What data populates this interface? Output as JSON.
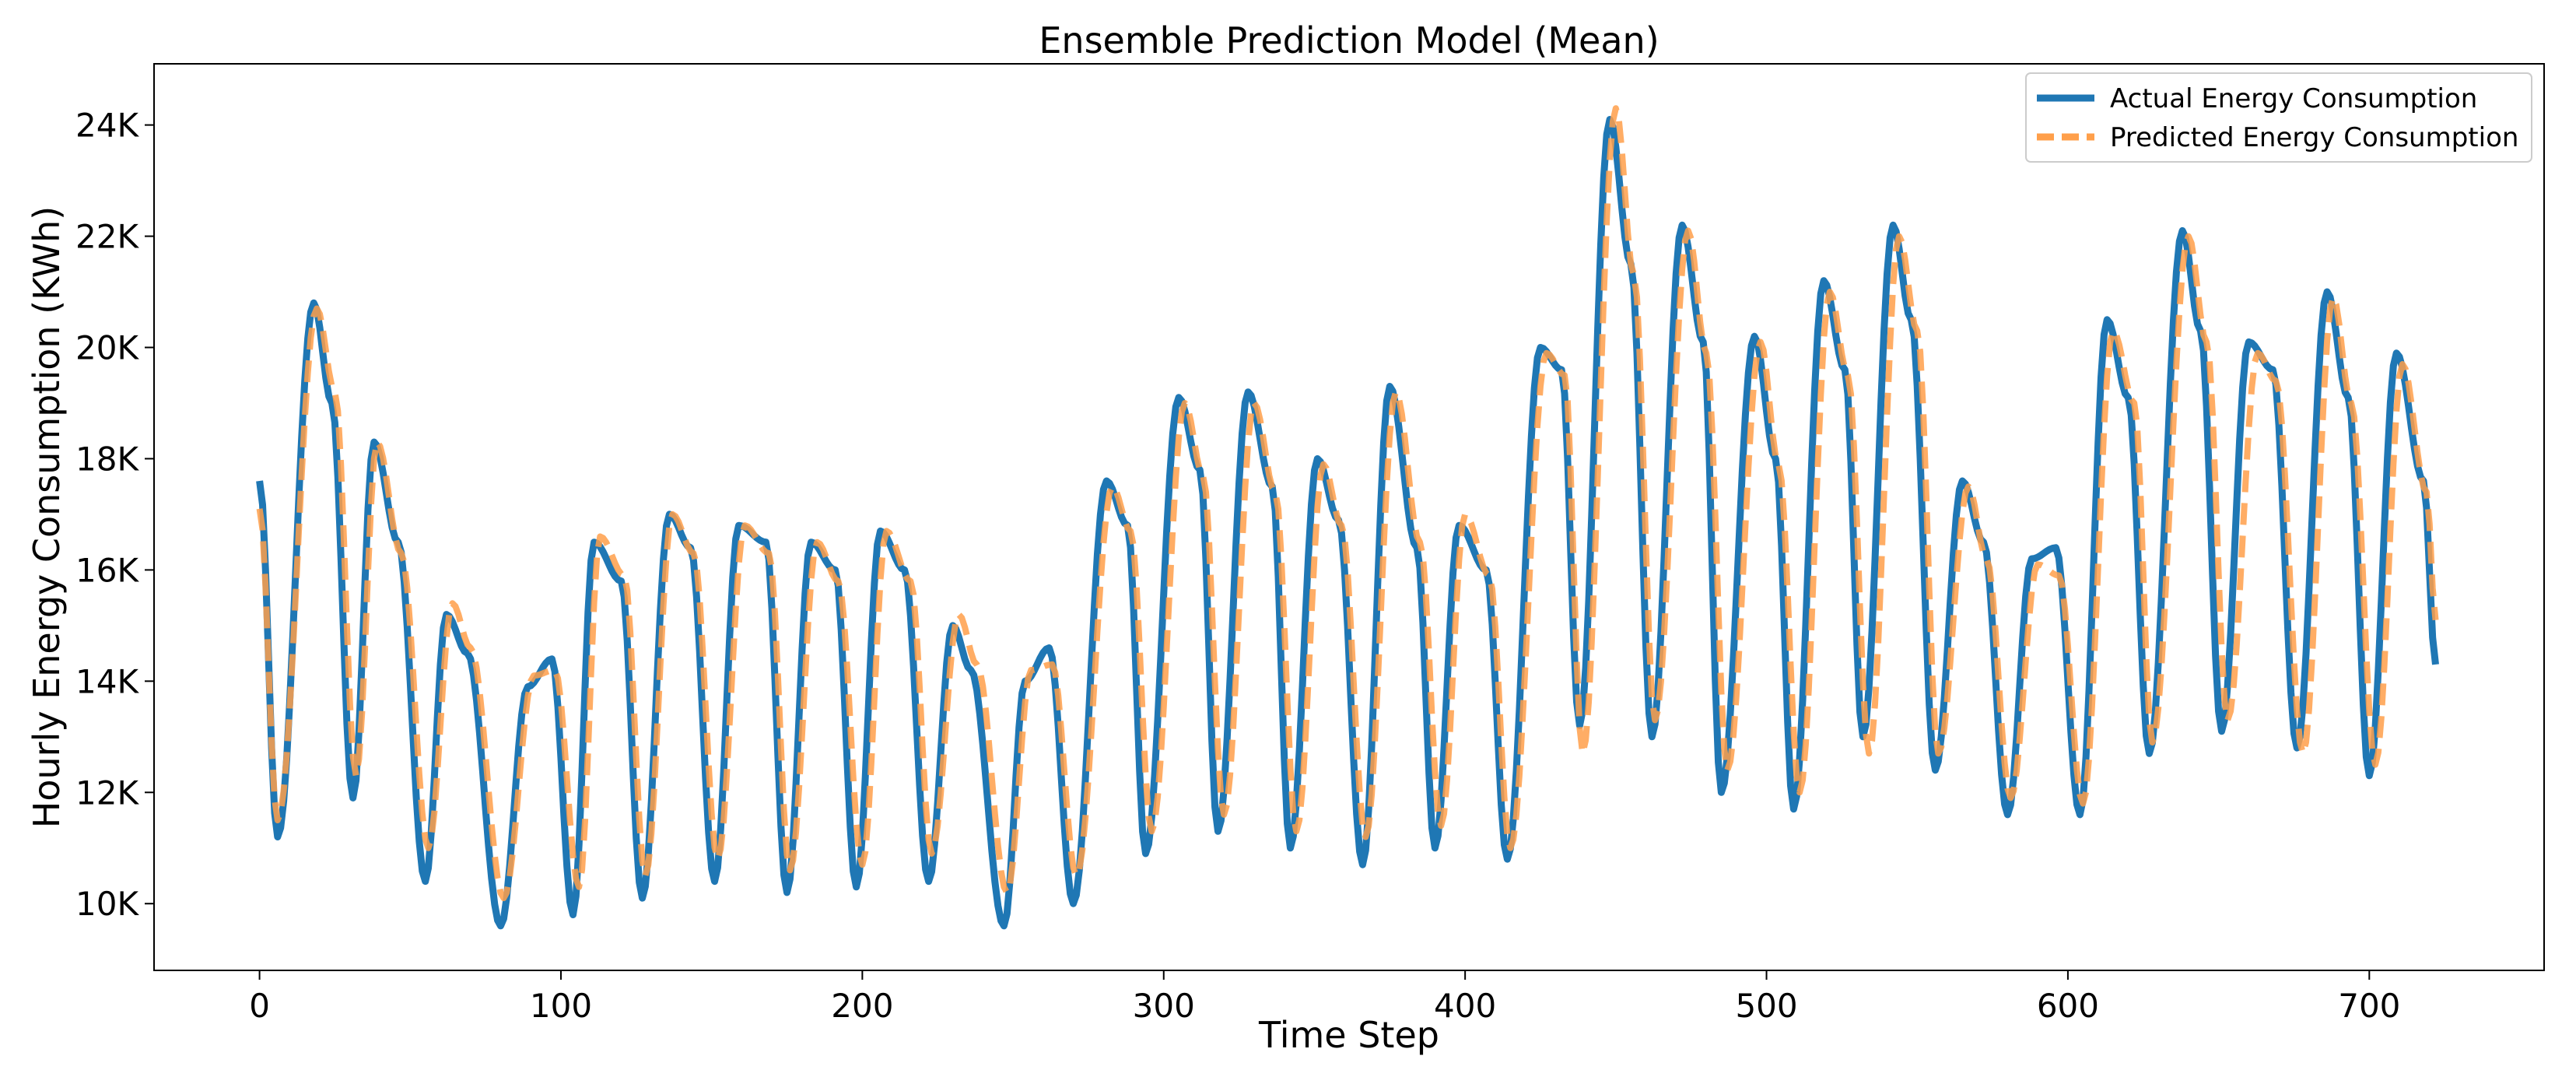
{
  "chart_data": {
    "type": "line",
    "title": "Ensemble Prediction Model (Mean)",
    "xlabel": "Time Step",
    "ylabel": "Hourly Energy Consumption (KWh)",
    "xlim": [
      -35,
      758
    ],
    "ylim": [
      8800,
      25100
    ],
    "xticks": [
      0,
      100,
      200,
      300,
      400,
      500,
      600,
      700
    ],
    "xtick_labels": [
      "0",
      "100",
      "200",
      "300",
      "400",
      "500",
      "600",
      "700"
    ],
    "yticks": [
      10000,
      12000,
      14000,
      16000,
      18000,
      20000,
      22000,
      24000
    ],
    "ytick_labels": [
      "10K",
      "12K",
      "14K",
      "16K",
      "18K",
      "20K",
      "22K",
      "24K"
    ],
    "legend_position": "top-right",
    "x_step": 1,
    "series": [
      {
        "name": "Actual Energy Consumption",
        "color": "#1f77b4",
        "style": "solid",
        "peaks": [
          [
            0,
            17600
          ],
          [
            6,
            11200
          ],
          [
            18,
            20800
          ],
          [
            24,
            19000
          ],
          [
            31,
            11900
          ],
          [
            38,
            18300
          ],
          [
            46,
            16500
          ],
          [
            55,
            10400
          ],
          [
            62,
            15200
          ],
          [
            69,
            14500
          ],
          [
            80,
            9600
          ],
          [
            89,
            13900
          ],
          [
            97,
            14400
          ],
          [
            104,
            9800
          ],
          [
            111,
            16500
          ],
          [
            120,
            15800
          ],
          [
            127,
            10100
          ],
          [
            136,
            17000
          ],
          [
            143,
            16400
          ],
          [
            151,
            10400
          ],
          [
            159,
            16800
          ],
          [
            168,
            16500
          ],
          [
            175,
            10200
          ],
          [
            183,
            16500
          ],
          [
            191,
            16000
          ],
          [
            198,
            10300
          ],
          [
            206,
            16700
          ],
          [
            214,
            16000
          ],
          [
            222,
            10400
          ],
          [
            230,
            15000
          ],
          [
            236,
            14200
          ],
          [
            247,
            9600
          ],
          [
            254,
            14000
          ],
          [
            262,
            14600
          ],
          [
            270,
            10000
          ],
          [
            281,
            17600
          ],
          [
            288,
            16800
          ],
          [
            294,
            10900
          ],
          [
            305,
            19100
          ],
          [
            312,
            17800
          ],
          [
            318,
            11300
          ],
          [
            328,
            19200
          ],
          [
            336,
            17500
          ],
          [
            342,
            11000
          ],
          [
            351,
            18000
          ],
          [
            358,
            16900
          ],
          [
            366,
            10700
          ],
          [
            375,
            19300
          ],
          [
            384,
            16400
          ],
          [
            390,
            11000
          ],
          [
            398,
            16800
          ],
          [
            407,
            16000
          ],
          [
            414,
            10800
          ],
          [
            425,
            20000
          ],
          [
            432,
            19600
          ],
          [
            438,
            13200
          ],
          [
            448,
            24100
          ],
          [
            455,
            21500
          ],
          [
            462,
            13000
          ],
          [
            472,
            22200
          ],
          [
            479,
            20100
          ],
          [
            485,
            12000
          ],
          [
            496,
            20200
          ],
          [
            503,
            18000
          ],
          [
            509,
            11700
          ],
          [
            519,
            21200
          ],
          [
            526,
            19600
          ],
          [
            532,
            13000
          ],
          [
            542,
            22200
          ],
          [
            548,
            20500
          ],
          [
            556,
            12400
          ],
          [
            565,
            17600
          ],
          [
            572,
            16500
          ],
          [
            580,
            11600
          ],
          [
            588,
            16200
          ],
          [
            596,
            16400
          ],
          [
            604,
            11600
          ],
          [
            613,
            20500
          ],
          [
            620,
            19100
          ],
          [
            627,
            12700
          ],
          [
            638,
            22100
          ],
          [
            644,
            20300
          ],
          [
            651,
            13100
          ],
          [
            660,
            20100
          ],
          [
            668,
            19600
          ],
          [
            676,
            12800
          ],
          [
            686,
            21000
          ],
          [
            693,
            19100
          ],
          [
            700,
            12300
          ],
          [
            709,
            19900
          ],
          [
            718,
            17600
          ],
          [
            722,
            14300
          ]
        ]
      },
      {
        "name": "Predicted Energy Consumption",
        "color": "#ff9f4a",
        "style": "dashed",
        "peaks": [
          [
            0,
            17100
          ],
          [
            6,
            11500
          ],
          [
            19,
            20700
          ],
          [
            25,
            19200
          ],
          [
            32,
            12300
          ],
          [
            39,
            18300
          ],
          [
            47,
            16300
          ],
          [
            56,
            11000
          ],
          [
            64,
            15400
          ],
          [
            70,
            14600
          ],
          [
            81,
            10100
          ],
          [
            91,
            14100
          ],
          [
            98,
            14200
          ],
          [
            106,
            10300
          ],
          [
            113,
            16600
          ],
          [
            121,
            15900
          ],
          [
            128,
            10500
          ],
          [
            137,
            17000
          ],
          [
            144,
            16300
          ],
          [
            152,
            10800
          ],
          [
            161,
            16800
          ],
          [
            169,
            16300
          ],
          [
            176,
            10600
          ],
          [
            185,
            16500
          ],
          [
            192,
            15800
          ],
          [
            200,
            10700
          ],
          [
            208,
            16700
          ],
          [
            216,
            15800
          ],
          [
            223,
            10900
          ],
          [
            232,
            15200
          ],
          [
            238,
            14300
          ],
          [
            248,
            10200
          ],
          [
            256,
            14200
          ],
          [
            263,
            14300
          ],
          [
            271,
            10500
          ],
          [
            283,
            17500
          ],
          [
            289,
            16700
          ],
          [
            296,
            11300
          ],
          [
            307,
            19000
          ],
          [
            313,
            17700
          ],
          [
            320,
            11600
          ],
          [
            330,
            19000
          ],
          [
            337,
            17400
          ],
          [
            344,
            11300
          ],
          [
            353,
            17900
          ],
          [
            359,
            16800
          ],
          [
            367,
            11200
          ],
          [
            377,
            19200
          ],
          [
            385,
            16500
          ],
          [
            392,
            11400
          ],
          [
            400,
            17000
          ],
          [
            408,
            15900
          ],
          [
            415,
            11000
          ],
          [
            427,
            19900
          ],
          [
            433,
            19500
          ],
          [
            439,
            12700
          ],
          [
            450,
            24300
          ],
          [
            456,
            21300
          ],
          [
            463,
            13300
          ],
          [
            474,
            22100
          ],
          [
            480,
            19900
          ],
          [
            487,
            12400
          ],
          [
            498,
            20100
          ],
          [
            504,
            17900
          ],
          [
            511,
            12000
          ],
          [
            521,
            21000
          ],
          [
            527,
            19500
          ],
          [
            534,
            12700
          ],
          [
            544,
            22000
          ],
          [
            550,
            20300
          ],
          [
            557,
            12700
          ],
          [
            567,
            17500
          ],
          [
            573,
            16200
          ],
          [
            581,
            11900
          ],
          [
            590,
            16100
          ],
          [
            597,
            15900
          ],
          [
            605,
            11800
          ],
          [
            615,
            20300
          ],
          [
            622,
            19000
          ],
          [
            628,
            12900
          ],
          [
            640,
            22000
          ],
          [
            646,
            20100
          ],
          [
            653,
            13300
          ],
          [
            663,
            19900
          ],
          [
            669,
            19400
          ],
          [
            678,
            12700
          ],
          [
            688,
            20900
          ],
          [
            694,
            19000
          ],
          [
            702,
            12500
          ],
          [
            711,
            19700
          ],
          [
            719,
            17400
          ],
          [
            722,
            15100
          ]
        ]
      }
    ]
  }
}
